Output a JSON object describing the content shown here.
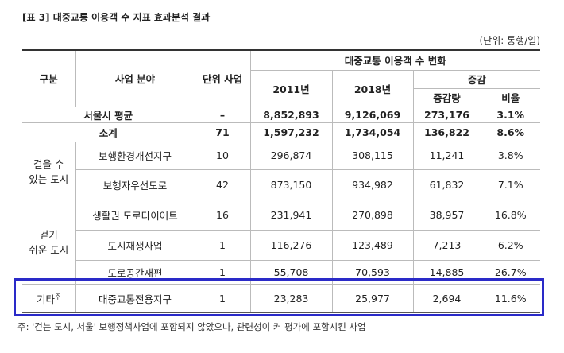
{
  "title": "[표 3] 대중교통 이용객 수 지표 효과분석 결과",
  "unit": "(단위: 통행/일)",
  "headers": {
    "category": "구분",
    "field": "사업 분야",
    "units": "단위 사업",
    "change": "대중교통 이용객 수 변화",
    "y2011": "2011년",
    "y2018": "2018년",
    "diff": "증감",
    "amount": "증감량",
    "ratio": "비율"
  },
  "summary_rows": [
    {
      "label": "서울시 평균",
      "values": [
        "–",
        "8,852,893",
        "9,126,069",
        "273,176",
        "3.1%"
      ]
    },
    {
      "label": "소계",
      "values": [
        "71",
        "1,597,232",
        "1,734,054",
        "136,822",
        "8.6%"
      ]
    }
  ],
  "groups": [
    {
      "label": [
        "걸을 수",
        "있는 도시"
      ],
      "rows": [
        {
          "name": "보행환경개선지구",
          "values": [
            "10",
            "296,874",
            "308,115",
            "11,241",
            "3.8%"
          ]
        },
        {
          "name": "보행자우선도로",
          "values": [
            "42",
            "873,150",
            "934,982",
            "61,832",
            "7.1%"
          ]
        }
      ]
    },
    {
      "label": [
        "걷기",
        "쉬운 도시"
      ],
      "rows": [
        {
          "name": "생활권 도로다이어트",
          "values": [
            "16",
            "231,941",
            "270,898",
            "38,957",
            "16.8%"
          ]
        },
        {
          "name": "도시재생사업",
          "values": [
            "1",
            "116,276",
            "123,489",
            "7,213",
            "6.2%"
          ]
        },
        {
          "name": "도로공간재편",
          "values": [
            "1",
            "55,708",
            "70,593",
            "14,885",
            "26.7%"
          ]
        }
      ]
    },
    {
      "label": [
        "기타"
      ],
      "note_mark": "주",
      "rows": [
        {
          "name": "대중교통전용지구",
          "values": [
            "1",
            "23,283",
            "25,977",
            "2,694",
            "11.6%"
          ]
        }
      ]
    }
  ],
  "note": "주: '걷는 도시, 서울' 보행정책사업에 포함되지 않았으나, 관련성이 커 평가에 포함시킨 사업"
}
